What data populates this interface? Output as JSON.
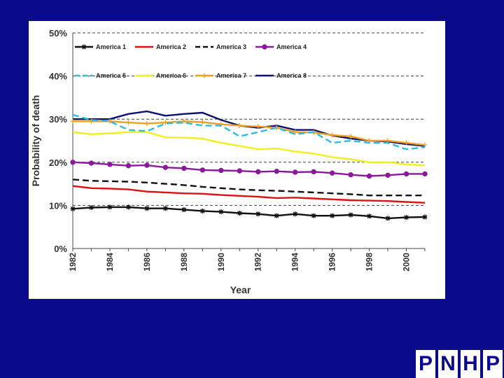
{
  "chart_data": {
    "type": "line",
    "title": "",
    "xlabel": "Year",
    "ylabel": "Probability of death",
    "ylim": [
      0,
      50
    ],
    "yticks": [
      "0%",
      "10%",
      "20%",
      "30%",
      "40%",
      "50%"
    ],
    "xticks": [
      "1982",
      "1984",
      "1986",
      "1988",
      "1990",
      "1992",
      "1994",
      "1996",
      "1998",
      "2000"
    ],
    "grid": "horizontal dashed",
    "legend_position": "top",
    "x": [
      1982,
      1983,
      1984,
      1985,
      1986,
      1987,
      1988,
      1989,
      1990,
      1991,
      1992,
      1993,
      1994,
      1995,
      1996,
      1997,
      1998,
      1999,
      2000,
      2001
    ],
    "series": [
      {
        "name": "America 1",
        "color": "#111111",
        "dash": "solid",
        "marker": "star",
        "values": [
          9.2,
          9.5,
          9.6,
          9.6,
          9.3,
          9.3,
          9.0,
          8.7,
          8.5,
          8.2,
          8.0,
          7.6,
          8.0,
          7.6,
          7.6,
          7.8,
          7.5,
          7.0,
          7.2,
          7.3
        ]
      },
      {
        "name": "America 2",
        "color": "#dd1111",
        "dash": "solid",
        "marker": "none",
        "values": [
          14.5,
          14.0,
          13.9,
          13.7,
          13.2,
          13.0,
          12.8,
          12.7,
          12.4,
          12.2,
          12.0,
          11.7,
          11.8,
          11.6,
          11.4,
          11.2,
          11.1,
          11.0,
          10.8,
          10.6
        ]
      },
      {
        "name": "America 3",
        "color": "#111111",
        "dash": "dashed",
        "marker": "none",
        "values": [
          16.0,
          15.7,
          15.6,
          15.5,
          15.3,
          15.0,
          14.7,
          14.3,
          14.0,
          13.7,
          13.5,
          13.4,
          13.2,
          13.0,
          12.8,
          12.6,
          12.3,
          12.3,
          12.3,
          12.3
        ]
      },
      {
        "name": "America 4",
        "color": "#8a1a9a",
        "dash": "solid",
        "marker": "circle",
        "values": [
          20.0,
          19.8,
          19.5,
          19.2,
          19.3,
          18.8,
          18.6,
          18.2,
          18.1,
          18.0,
          17.8,
          17.9,
          17.7,
          17.8,
          17.5,
          17.1,
          16.8,
          17.0,
          17.3,
          17.3
        ]
      },
      {
        "name": "America 5",
        "color": "#2bbde0",
        "dash": "dashed",
        "marker": "none",
        "values": [
          31.0,
          29.8,
          29.5,
          27.5,
          27.2,
          29.0,
          29.2,
          28.5,
          28.5,
          26.0,
          27.0,
          28.0,
          26.5,
          27.0,
          24.5,
          25.0,
          24.5,
          24.5,
          23.0,
          23.5
        ]
      },
      {
        "name": "America 6",
        "color": "#f0f020",
        "dash": "solid",
        "marker": "none",
        "values": [
          27.0,
          26.5,
          26.7,
          27.0,
          27.0,
          25.8,
          25.7,
          25.5,
          24.5,
          23.8,
          23.0,
          23.2,
          22.5,
          22.0,
          21.2,
          20.7,
          20.0,
          20.0,
          19.5,
          19.3
        ]
      },
      {
        "name": "America 7",
        "color": "#f0a020",
        "dash": "solid",
        "marker": "plus",
        "values": [
          29.5,
          29.5,
          29.5,
          29.2,
          29.0,
          29.2,
          29.5,
          29.3,
          28.8,
          28.5,
          28.3,
          28.0,
          27.0,
          26.9,
          26.3,
          26.0,
          25.0,
          25.0,
          24.5,
          24.0
        ]
      },
      {
        "name": "America 8",
        "color": "#101070",
        "dash": "solid",
        "marker": "none",
        "values": [
          30.0,
          30.0,
          30.0,
          31.2,
          31.8,
          30.8,
          31.2,
          31.5,
          29.8,
          28.5,
          28.0,
          28.5,
          27.5,
          27.5,
          26.2,
          25.5,
          25.0,
          24.8,
          24.2,
          23.8
        ]
      }
    ]
  },
  "logo": {
    "letters": [
      "P",
      "N",
      "H",
      "P"
    ]
  }
}
